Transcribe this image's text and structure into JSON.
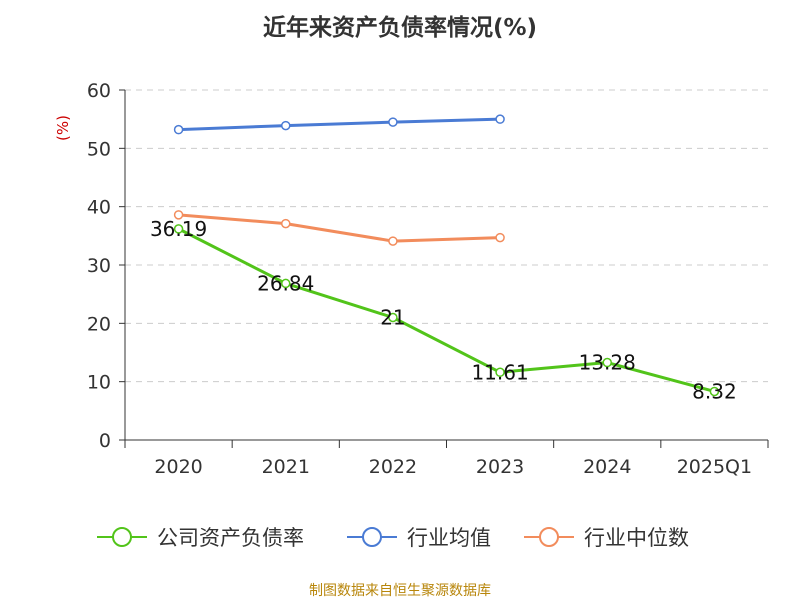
{
  "chart_data": {
    "type": "line",
    "title": "近年来资产负债率情况(%)",
    "ylabel": "(%)",
    "xlabel": "",
    "categories": [
      "2020",
      "2021",
      "2022",
      "2023",
      "2024",
      "2025Q1"
    ],
    "ylim": [
      0,
      60
    ],
    "yticks": [
      0,
      10,
      20,
      30,
      40,
      50,
      60
    ],
    "grid": true,
    "legend_position": "bottom",
    "series": [
      {
        "name": "公司资产负债率",
        "color": "#52c41a",
        "values": [
          36.19,
          26.84,
          21,
          11.61,
          13.28,
          8.32
        ],
        "labels": [
          "36.19",
          "26.84",
          "21",
          "11.61",
          "13.28",
          "8.32"
        ]
      },
      {
        "name": "行业均值",
        "color": "#4a7bd4",
        "values": [
          53.2,
          53.9,
          54.5,
          55.0,
          null,
          null
        ]
      },
      {
        "name": "行业中位数",
        "color": "#f28c5c",
        "values": [
          38.6,
          37.1,
          34.1,
          34.7,
          null,
          null
        ]
      }
    ]
  },
  "source": "制图数据来自恒生聚源数据库"
}
